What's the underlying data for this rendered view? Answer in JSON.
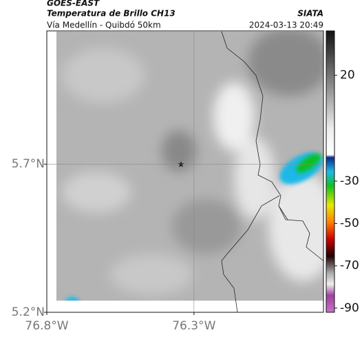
{
  "header": {
    "title": "GOES-EAST",
    "subtitle": "Temperatura de Brillo CH13",
    "route": "Vía Medellín - Quibdó 50km",
    "source": "SIATA",
    "datetime": "2024-03-13 20:49"
  },
  "map": {
    "lonlim": [
      -76.8,
      -75.86
    ],
    "latlim": [
      5.2,
      6.15
    ],
    "lat_ticks": [
      {
        "value": 5.7,
        "label": "5.7°N"
      },
      {
        "value": 5.2,
        "label": "5.2°N"
      }
    ],
    "lon_ticks": [
      {
        "value": -76.8,
        "label": "76.8°W"
      },
      {
        "value": -76.3,
        "label": "76.3°W"
      }
    ],
    "grid": true
  },
  "colorbar": {
    "lim": [
      -92,
      41
    ],
    "ticks": [
      20,
      -30,
      -50,
      -70,
      -90
    ]
  }
}
